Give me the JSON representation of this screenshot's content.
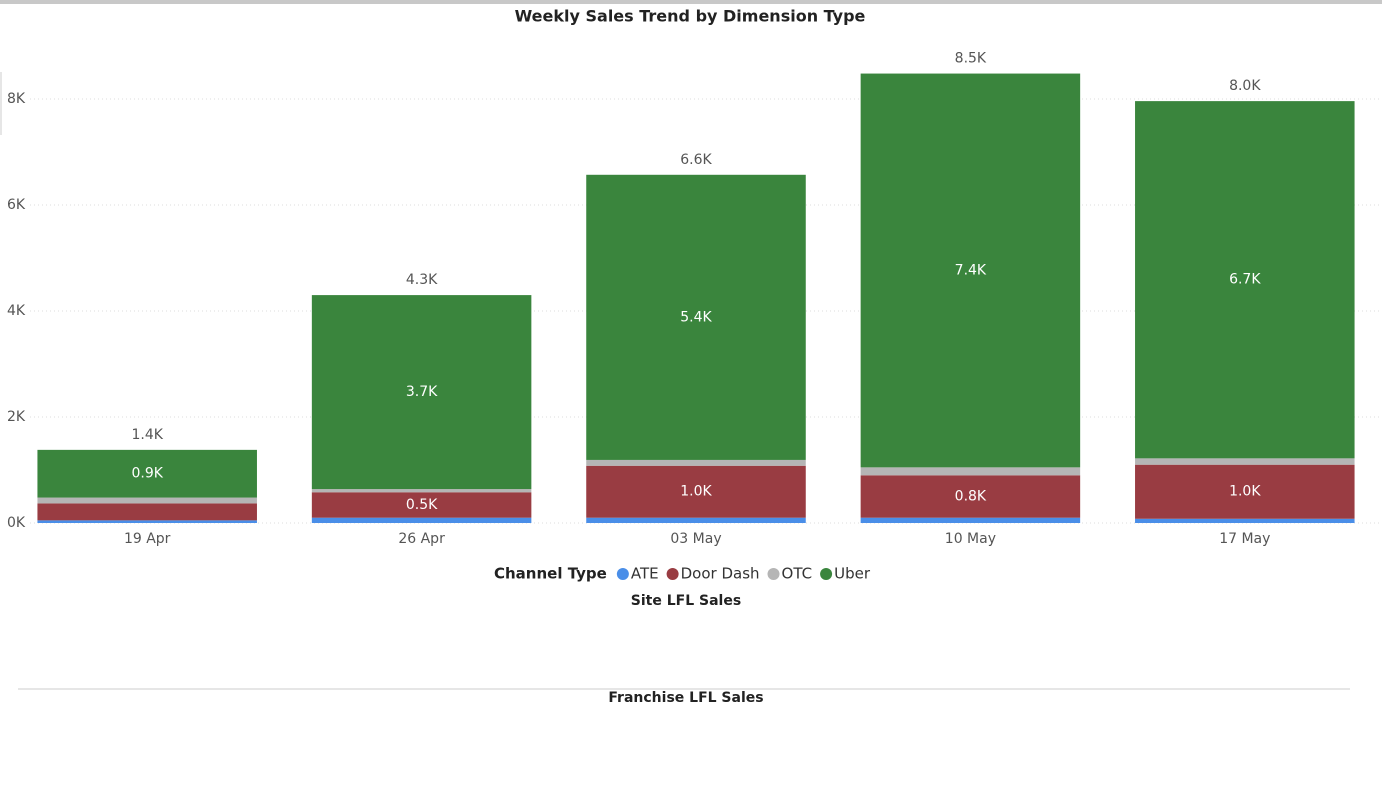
{
  "chart_data": {
    "type": "stacked-bar",
    "title": "Weekly Sales Trend by Dimension Type",
    "categories": [
      "19 Apr",
      "26 Apr",
      "03 May",
      "10 May",
      "17 May"
    ],
    "series": [
      {
        "name": "ATE",
        "color": "#4a8ee8",
        "values": [
          50,
          100,
          100,
          100,
          80
        ]
      },
      {
        "name": "Door Dash",
        "color": "#993c42",
        "values": [
          320,
          480,
          980,
          800,
          1020
        ],
        "value_labels": [
          null,
          "0.5K",
          "1.0K",
          "0.8K",
          "1.0K"
        ]
      },
      {
        "name": "OTC",
        "color": "#b5b5b5",
        "values": [
          110,
          60,
          110,
          150,
          120
        ]
      },
      {
        "name": "Uber",
        "color": "#3a853d",
        "values": [
          900,
          3660,
          5380,
          7430,
          6740
        ],
        "value_labels": [
          "0.9K",
          "3.7K",
          "5.4K",
          "7.4K",
          "6.7K"
        ]
      }
    ],
    "totals": [
      1380,
      4300,
      6570,
      8480,
      7960
    ],
    "total_labels": [
      "1.4K",
      "4.3K",
      "6.6K",
      "8.5K",
      "8.0K"
    ],
    "ylim": [
      0,
      9000
    ],
    "yticks": [
      {
        "value": 0,
        "label": "0K"
      },
      {
        "value": 2000,
        "label": "2K"
      },
      {
        "value": 4000,
        "label": "4K"
      },
      {
        "value": 6000,
        "label": "6K"
      },
      {
        "value": 8000,
        "label": "8K"
      }
    ],
    "grid": true,
    "legend_title": "Channel Type",
    "legend_position": "bottom"
  },
  "sections": [
    "Site LFL Sales",
    "Franchise LFL Sales"
  ]
}
